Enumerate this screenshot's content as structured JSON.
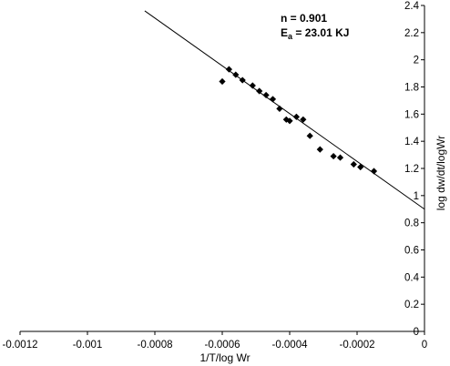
{
  "chart_data": {
    "type": "scatter",
    "title": "",
    "xlabel": "1/T/log Wr",
    "ylabel": "log dw/dt/logWr",
    "xlim": [
      -0.0012,
      0
    ],
    "ylim": [
      0,
      2.4
    ],
    "x_ticks": [
      -0.0012,
      -0.001,
      -0.0008,
      -0.0006,
      -0.0004,
      -0.0002,
      0
    ],
    "x_tick_labels": [
      "-0.0012",
      "-0.001",
      "-0.0008",
      "-0.0006",
      "-0.0004",
      "-0.0002",
      "0"
    ],
    "y_ticks": [
      0,
      0.2,
      0.4,
      0.6,
      0.8,
      1,
      1.2,
      1.4,
      1.6,
      1.8,
      2,
      2.2,
      2.4
    ],
    "y_tick_labels": [
      "0",
      "0.2",
      "0.4",
      "0.6",
      "0.8",
      "1",
      "1.2",
      "1.4",
      "1.6",
      "1.8",
      "2",
      "2.2",
      "2.4"
    ],
    "y_axis_position": "right",
    "grid": false,
    "legend": "none",
    "marker": "diamond",
    "annotation_line1": "n = 0.901",
    "annotation_line2_prefix": "E",
    "annotation_line2_sub": "a",
    "annotation_line2_suffix": " = 23.01 KJ",
    "series": [
      {
        "points": [
          [
            -0.0006,
            1.84
          ],
          [
            -0.00058,
            1.93
          ],
          [
            -0.00056,
            1.89
          ],
          [
            -0.00054,
            1.85
          ],
          [
            -0.00051,
            1.81
          ],
          [
            -0.00049,
            1.77
          ],
          [
            -0.00047,
            1.74
          ],
          [
            -0.00045,
            1.71
          ],
          [
            -0.00043,
            1.64
          ],
          [
            -0.00041,
            1.56
          ],
          [
            -0.0004,
            1.55
          ],
          [
            -0.00038,
            1.58
          ],
          [
            -0.00036,
            1.56
          ],
          [
            -0.00034,
            1.44
          ],
          [
            -0.00031,
            1.34
          ],
          [
            -0.00027,
            1.29
          ],
          [
            -0.00025,
            1.28
          ],
          [
            -0.00021,
            1.23
          ],
          [
            -0.00019,
            1.21
          ],
          [
            -0.00015,
            1.18
          ]
        ]
      }
    ],
    "trendline": {
      "x": [
        -0.00083,
        0
      ],
      "y": [
        2.36,
        0.9
      ]
    }
  }
}
